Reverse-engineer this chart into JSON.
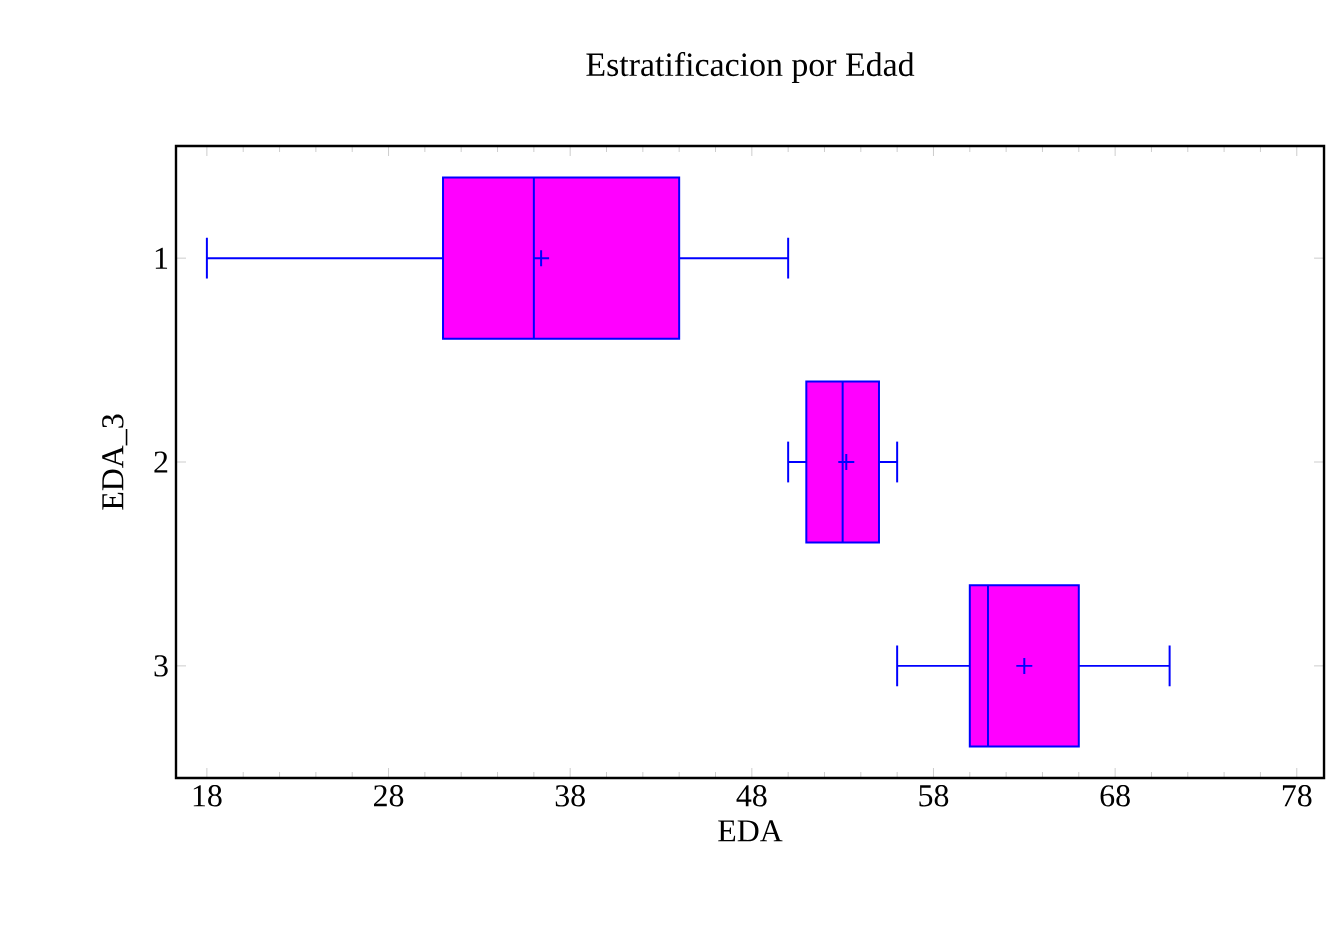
{
  "chart_data": {
    "type": "box",
    "orientation": "horizontal",
    "title": "Estratificacion por Edad",
    "xlabel": "EDA",
    "ylabel": "EDA_3",
    "categories": [
      "1",
      "2",
      "3"
    ],
    "color": "#ff00ff",
    "boxes": [
      {
        "low": 18,
        "q1": 31,
        "median": 36,
        "q3": 44,
        "high": 50,
        "mean": 36.4
      },
      {
        "low": 50,
        "q1": 51,
        "median": 53,
        "q3": 55,
        "high": 56,
        "mean": 53.2
      },
      {
        "low": 56,
        "q1": 60,
        "median": 61,
        "q3": 66,
        "high": 71,
        "mean": 63
      }
    ],
    "xlim": [
      16.3,
      79.5
    ],
    "xticks": [
      18,
      28,
      38,
      48,
      58,
      68,
      78
    ]
  }
}
